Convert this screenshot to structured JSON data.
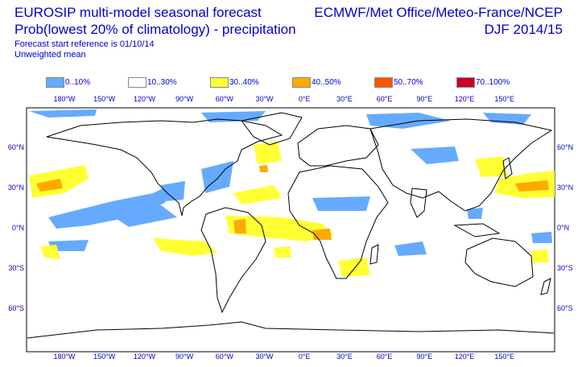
{
  "title": {
    "line1": "EUROSIP multi-model seasonal forecast",
    "line2": "Prob(lowest 20% of climatology) - precipitation",
    "line3": "Forecast start reference is 01/10/14",
    "line4": "Unweighted mean",
    "right1": "ECMWF/Met Office/Meteo-France/NCEP",
    "right2": "DJF 2014/15"
  },
  "legend": [
    {
      "label": "0..10%",
      "color": "#66aaff"
    },
    {
      "label": "10..30%",
      "color": "#ffffff"
    },
    {
      "label": "30..40%",
      "color": "#ffff33"
    },
    {
      "label": "40..50%",
      "color": "#ffaa00"
    },
    {
      "label": "50..70%",
      "color": "#ff5500"
    },
    {
      "label": "70..100%",
      "color": "#cc0022"
    }
  ],
  "axes": {
    "lon_labels": [
      "180°W",
      "150°W",
      "120°W",
      "90°W",
      "60°W",
      "30°W",
      "0°E",
      "30°E",
      "60°E",
      "90°E",
      "120°E",
      "150°E"
    ],
    "lat_labels": [
      "60°N",
      "30°N",
      "0°N",
      "30°S",
      "60°S"
    ]
  }
}
